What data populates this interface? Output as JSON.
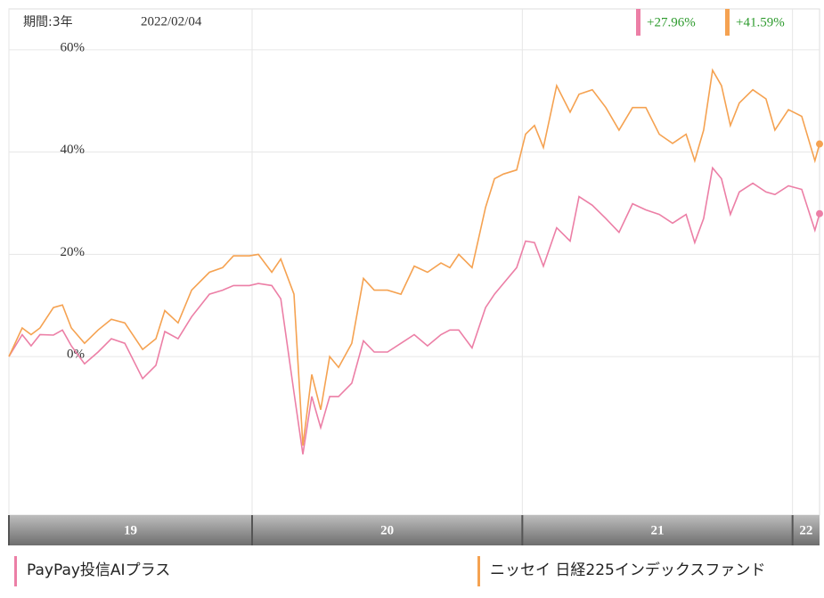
{
  "chart_data": {
    "type": "line",
    "period_label": "期間:3年",
    "date": "2022/02/04",
    "x": [
      19.1,
      19.149,
      19.182,
      19.215,
      19.265,
      19.298,
      19.331,
      19.38,
      19.43,
      19.479,
      19.529,
      19.595,
      19.644,
      19.677,
      19.726,
      19.776,
      19.842,
      19.891,
      19.931,
      19.99,
      20.023,
      20.073,
      20.106,
      20.155,
      20.188,
      20.221,
      20.254,
      20.287,
      20.32,
      20.369,
      20.412,
      20.452,
      20.501,
      20.551,
      20.6,
      20.649,
      20.699,
      20.732,
      20.765,
      20.814,
      20.864,
      20.897,
      20.93,
      20.979,
      21.012,
      21.045,
      21.078,
      21.127,
      21.177,
      21.21,
      21.259,
      21.309,
      21.358,
      21.408,
      21.457,
      21.507,
      21.556,
      21.606,
      21.638,
      21.671,
      21.704,
      21.737,
      21.77,
      21.803,
      21.853,
      21.902,
      21.935,
      21.985,
      22.034,
      22.083,
      22.1
    ],
    "series": [
      {
        "name": "PayPay投信AIプラス",
        "color": "#ec7fa6",
        "values": [
          0,
          4.3,
          2.1,
          4.3,
          4.2,
          5.2,
          2.1,
          -1.4,
          0.9,
          3.5,
          2.6,
          -4.3,
          -1.7,
          4.9,
          3.5,
          7.8,
          12.2,
          13.0,
          13.9,
          13.9,
          14.3,
          13.9,
          11.3,
          -7.0,
          -19.1,
          -7.8,
          -13.9,
          -7.8,
          -7.8,
          -5.2,
          3.1,
          0.9,
          0.9,
          2.6,
          4.3,
          2.1,
          4.3,
          5.2,
          5.2,
          1.7,
          9.6,
          12.2,
          14.3,
          17.4,
          22.6,
          22.3,
          17.7,
          25.2,
          22.6,
          31.3,
          29.6,
          27.0,
          24.3,
          29.9,
          28.7,
          27.8,
          26.1,
          27.8,
          22.3,
          27.0,
          36.9,
          34.8,
          27.8,
          32.2,
          33.9,
          32.2,
          31.7,
          33.4,
          32.7,
          24.7,
          27.96
        ]
      },
      {
        "name": "ニッセイ 日経225インデックスファンド",
        "color": "#f5a251",
        "values": [
          0,
          5.6,
          4.3,
          5.6,
          9.6,
          10.1,
          5.6,
          2.6,
          5.2,
          7.3,
          6.6,
          1.4,
          3.5,
          9.0,
          6.6,
          13.0,
          16.5,
          17.4,
          19.7,
          19.7,
          20.0,
          16.5,
          19.1,
          12.2,
          -17.4,
          -3.5,
          -10.4,
          0,
          -2.1,
          2.6,
          15.3,
          13.0,
          13.0,
          12.2,
          17.7,
          16.5,
          18.3,
          17.4,
          20.0,
          17.4,
          29.2,
          34.8,
          35.7,
          36.5,
          43.5,
          45.2,
          40.9,
          53.0,
          47.8,
          51.3,
          52.2,
          48.7,
          44.3,
          48.7,
          48.7,
          43.5,
          41.7,
          43.5,
          38.3,
          44.3,
          56.0,
          53.0,
          45.2,
          49.6,
          52.2,
          50.4,
          44.3,
          48.3,
          47.0,
          38.3,
          41.59
        ]
      }
    ],
    "annotations": [
      {
        "label": "+27.96%",
        "value": 27.96,
        "color": "#ec7fa6"
      },
      {
        "label": "+41.59%",
        "value": 41.59,
        "color": "#f5a251"
      }
    ],
    "xlim": [
      19.1,
      22.1
    ],
    "xticks": [
      {
        "value": 19.1,
        "label": "19"
      },
      20,
      21,
      22
    ],
    "ylim": [
      -31,
      68
    ],
    "yticks": [
      {
        "value": 0,
        "label": "0%"
      },
      {
        "value": 20,
        "label": "20%"
      },
      {
        "value": 40,
        "label": "40%"
      },
      {
        "value": 60,
        "label": "60%"
      }
    ],
    "grid": true
  }
}
